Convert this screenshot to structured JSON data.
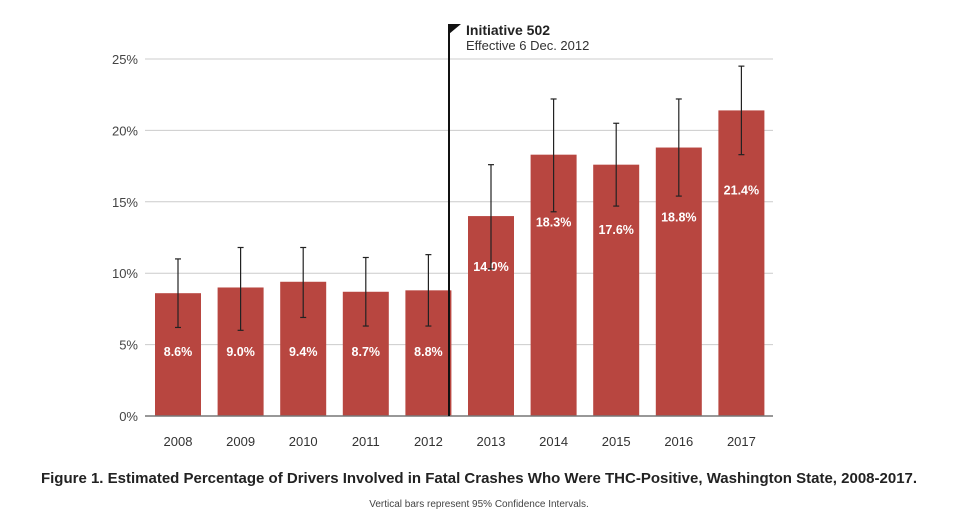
{
  "chart_data": {
    "type": "bar",
    "title": "Figure 1. Estimated Percentage of Drivers Involved in Fatal Crashes Who Were THC-Positive, Washington State, 2008-2017.",
    "note": "Vertical bars represent 95% Confidence Intervals.",
    "xlabel": "",
    "ylabel": "",
    "ylim": [
      0,
      25
    ],
    "yticks": [
      0,
      5,
      10,
      15,
      20,
      25
    ],
    "ytick_labels": [
      "0%",
      "5%",
      "10%",
      "15%",
      "20%",
      "25%"
    ],
    "grid": true,
    "categories": [
      "2008",
      "2009",
      "2010",
      "2011",
      "2012",
      "2013",
      "2014",
      "2015",
      "2016",
      "2017"
    ],
    "values": [
      8.6,
      9.0,
      9.4,
      8.7,
      8.8,
      14.0,
      18.3,
      17.6,
      18.8,
      21.4
    ],
    "value_labels": [
      "8.6%",
      "9.0%",
      "9.4%",
      "8.7%",
      "8.8%",
      "14.0%",
      "18.3%",
      "17.6%",
      "18.8%",
      "21.4%"
    ],
    "ci_low": [
      6.2,
      6.0,
      6.9,
      6.3,
      6.3,
      10.3,
      14.3,
      14.7,
      15.4,
      18.3
    ],
    "ci_high": [
      11.0,
      11.8,
      11.8,
      11.1,
      11.3,
      17.6,
      22.2,
      20.5,
      22.2,
      24.5
    ],
    "annotation": {
      "title": "Initiative 502",
      "subtitle": "Effective 6 Dec. 2012",
      "position_between": [
        "2012",
        "2013"
      ]
    },
    "colors": {
      "bar": "#b84640",
      "grid": "#cccccc",
      "axis": "#777777",
      "marker": "#111111"
    }
  }
}
